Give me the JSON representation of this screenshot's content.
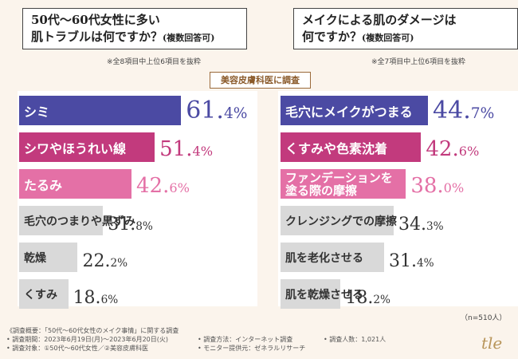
{
  "left_question": {
    "line1": "50代〜60代女性に多い",
    "line2": "肌トラブルは何ですか？",
    "suffix": "(複数回答可)"
  },
  "right_question": {
    "line1": "メイクによる肌のダメージは",
    "line2": "何ですか？",
    "suffix": "(複数回答可)"
  },
  "left_note": "※全8項目中上位6項目を抜粋",
  "right_note": "※全7項目中上位6項目を抜粋",
  "stamp": "美容皮膚科医に調査",
  "colors": {
    "navy": "#4b4aa3",
    "magenta": "#c23a7d",
    "pink": "#e470a6",
    "gray": "#d9d9d9"
  },
  "chart_data": [
    {
      "type": "bar",
      "title": "50代〜60代女性に多い肌トラブルは何ですか？(複数回答可)",
      "unit": "%",
      "categories": [
        "シミ",
        "シワやほうれい線",
        "たるみ",
        "毛穴のつまりや黒ずみ",
        "乾燥",
        "くすみ"
      ],
      "values": [
        61.4,
        51.4,
        42.6,
        31.8,
        22.2,
        18.6
      ],
      "bar_colors": [
        "navy",
        "magenta",
        "pink",
        "gray",
        "gray",
        "gray"
      ]
    },
    {
      "type": "bar",
      "title": "メイクによる肌のダメージは何ですか？(複数回答可)",
      "unit": "%",
      "categories": [
        "毛穴にメイクがつまる",
        "くすみや色素沈着",
        "ファンデーションを塗る際の摩擦",
        "クレンジングでの摩擦",
        "肌を老化させる",
        "肌を乾燥させる"
      ],
      "values": [
        44.7,
        42.6,
        38.0,
        34.3,
        31.4,
        18.2
      ],
      "bar_colors": [
        "navy",
        "magenta",
        "pink",
        "gray",
        "gray",
        "gray"
      ]
    }
  ],
  "right_label_lines": {
    "0": "ファンデーションを",
    "1": "塗る際の摩擦"
  },
  "sample_size": "（n=510人）",
  "footer": {
    "overview": "《調査概要：「50代〜60代女性のメイク事情」に関する調査",
    "period": "• 調査期間：2023年6月19日(月)〜2023年6月20日(火)",
    "method": "• 調査方法：インターネット調査",
    "count": "• 調査人数：1,021人",
    "target": "• 調査対象：①50代〜60代女性／②美容皮膚科医",
    "provider": "• モニター提供元：ゼネラルリサーチ"
  },
  "logo": "tle"
}
